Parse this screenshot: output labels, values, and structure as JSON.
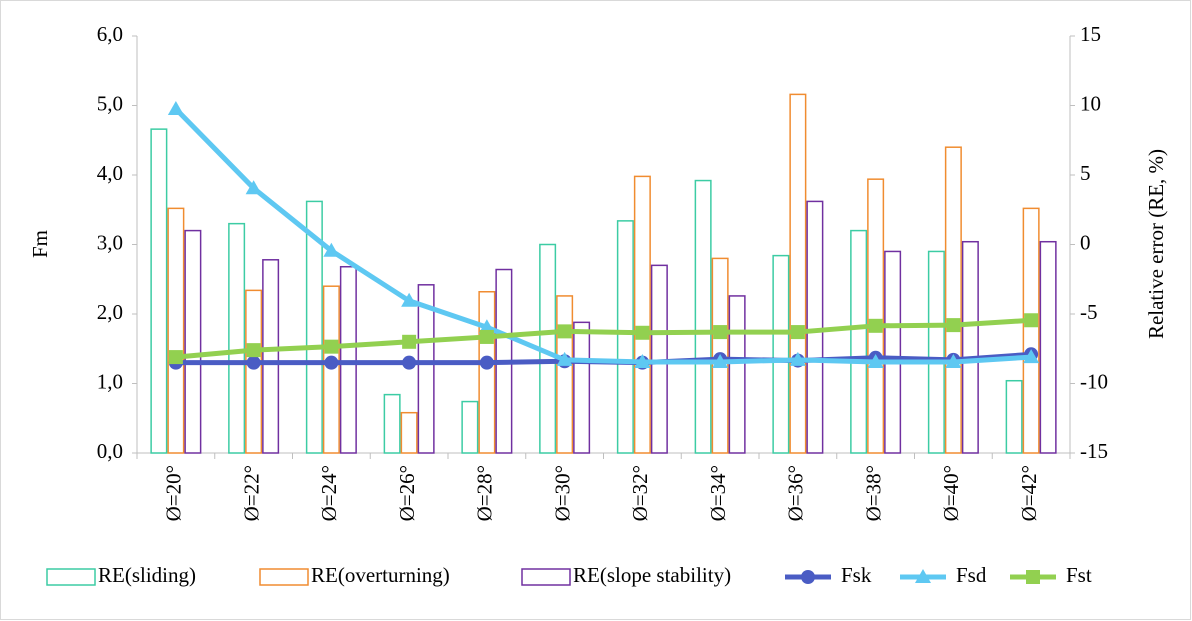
{
  "chart_data": {
    "type": "bar-line",
    "y_label": "Fm",
    "y2_label": "Relative error (RE, %)",
    "categories": [
      "Ø=20°",
      "Ø=22°",
      "Ø=24°",
      "Ø=26°",
      "Ø=28°",
      "Ø=30°",
      "Ø=32°",
      "Ø=34°",
      "Ø=36°",
      "Ø=38°",
      "Ø=40°",
      "Ø=42°"
    ],
    "ylim": [
      0,
      6
    ],
    "yticks": [
      {
        "value": 0,
        "label": "0,0"
      },
      {
        "value": 1,
        "label": "1,0"
      },
      {
        "value": 2,
        "label": "2,0"
      },
      {
        "value": 3,
        "label": "3,0"
      },
      {
        "value": 4,
        "label": "4,0"
      },
      {
        "value": 5,
        "label": "5,0"
      },
      {
        "value": 6,
        "label": "6,0"
      }
    ],
    "y2lim": [
      -15,
      15
    ],
    "y2ticks": [
      -15,
      -10,
      -5,
      0,
      5,
      10,
      15
    ],
    "grid": false,
    "legend": "bottom",
    "series": [
      {
        "name": "RE(sliding)",
        "type": "bar",
        "axis": "y2",
        "color": "#3ccca4",
        "values": [
          8.3,
          1.5,
          3.1,
          -10.8,
          -11.3,
          0.0,
          1.7,
          4.6,
          -0.8,
          1.0,
          -0.5,
          -9.8
        ]
      },
      {
        "name": "RE(overturning)",
        "type": "bar",
        "axis": "y2",
        "color": "#f08c30",
        "values": [
          2.6,
          -3.3,
          -3.0,
          -12.1,
          -3.4,
          -3.7,
          4.9,
          -1.0,
          10.8,
          4.7,
          7.0,
          2.6
        ]
      },
      {
        "name": "RE(slope stability)",
        "type": "bar",
        "axis": "y2",
        "color": "#7030a0",
        "values": [
          1.0,
          -1.1,
          -1.6,
          -2.9,
          -1.8,
          -5.6,
          -1.5,
          -3.7,
          3.1,
          -0.5,
          0.2,
          0.2
        ]
      },
      {
        "name": "Fsk",
        "type": "line",
        "marker": "circle",
        "color": "#4a5cc4",
        "values": [
          1.3,
          1.3,
          1.3,
          1.3,
          1.3,
          1.32,
          1.3,
          1.35,
          1.33,
          1.37,
          1.34,
          1.42
        ]
      },
      {
        "name": "Fsd",
        "type": "line",
        "marker": "triangle",
        "color": "#5ec8f2",
        "values": [
          4.95,
          3.81,
          2.91,
          2.19,
          1.81,
          1.34,
          1.31,
          1.31,
          1.34,
          1.31,
          1.31,
          1.38
        ]
      },
      {
        "name": "Fst",
        "type": "line",
        "marker": "square",
        "color": "#92d050",
        "values": [
          1.38,
          1.48,
          1.53,
          1.6,
          1.67,
          1.75,
          1.73,
          1.74,
          1.74,
          1.83,
          1.84,
          1.91
        ]
      }
    ]
  }
}
